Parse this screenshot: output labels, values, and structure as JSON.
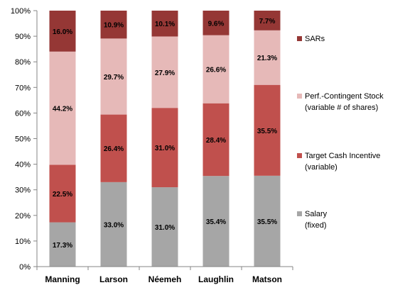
{
  "chart_data": {
    "type": "stacked-bar",
    "categories": [
      "Manning",
      "Larson",
      "Néemeh",
      "Laughlin",
      "Matson"
    ],
    "series": [
      {
        "name": "Salary",
        "legend_lines": [
          "Salary",
          "(fixed)"
        ],
        "color": "#a6a6a6",
        "values": [
          17.3,
          33.0,
          31.0,
          35.4,
          35.5
        ],
        "labels": [
          "17.3%",
          "33.0%",
          "31.0%",
          "35.4%",
          "35.5%"
        ]
      },
      {
        "name": "Target Cash Incentive",
        "legend_lines": [
          "Target Cash Incentive",
          "(variable)"
        ],
        "color": "#c0504d",
        "values": [
          22.5,
          26.4,
          31.0,
          28.4,
          35.5
        ],
        "labels": [
          "22.5%",
          "26.4%",
          "31.0%",
          "28.4%",
          "35.5%"
        ]
      },
      {
        "name": "Perf.-Contingent Stock",
        "legend_lines": [
          "Perf.-Contingent Stock",
          "(variable # of shares)"
        ],
        "color": "#e6b9b8",
        "values": [
          44.2,
          29.7,
          27.9,
          26.6,
          21.3
        ],
        "labels": [
          "44.2%",
          "29.7%",
          "27.9%",
          "26.6%",
          "21.3%"
        ]
      },
      {
        "name": "SARs",
        "legend_lines": [
          "SARs"
        ],
        "color": "#953735",
        "values": [
          16.0,
          10.9,
          10.1,
          9.6,
          7.7
        ],
        "labels": [
          "16.0%",
          "10.9%",
          "10.1%",
          "9.6%",
          "7.7%"
        ]
      }
    ],
    "y_ticks": [
      "0%",
      "10%",
      "20%",
      "30%",
      "40%",
      "50%",
      "60%",
      "70%",
      "80%",
      "90%",
      "100%"
    ],
    "ylim": [
      0,
      100
    ],
    "grid": false,
    "legend_position": "right"
  }
}
